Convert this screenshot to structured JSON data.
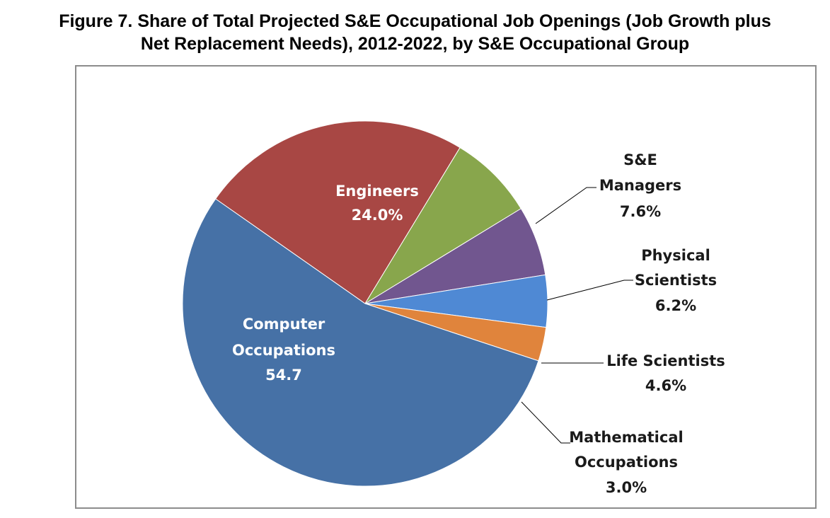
{
  "chart_data": {
    "type": "pie",
    "title_line1": "Figure 7. Share of Total Projected S&E Occupational Job Openings (Job Growth plus",
    "title_line2": "Net Replacement Needs), 2012-2022, by S&E Occupational Group",
    "slices": [
      {
        "label_lines": [
          "Engineers"
        ],
        "value": 24.0,
        "value_text": "24.0%",
        "color": "#a84744",
        "label_color": "#ffffff"
      },
      {
        "label_lines": [
          "S&E",
          "Managers"
        ],
        "value": 7.6,
        "value_text": "7.6%",
        "color": "#88a64c",
        "label_color": "#1a1a1a"
      },
      {
        "label_lines": [
          "Physical",
          "Scientists"
        ],
        "value": 6.2,
        "value_text": "6.2%",
        "color": "#71568f",
        "label_color": "#1a1a1a"
      },
      {
        "label_lines": [
          "Life Scientists"
        ],
        "value": 4.6,
        "value_text": "4.6%",
        "color": "#4f89d4",
        "label_color": "#1a1a1a"
      },
      {
        "label_lines": [
          "Mathematical",
          "Occupations"
        ],
        "value": 3.0,
        "value_text": "3.0%",
        "color": "#e0843c",
        "label_color": "#1a1a1a"
      },
      {
        "label_lines": [
          "Computer",
          "Occupations"
        ],
        "value": 54.7,
        "value_text": "54.7",
        "color": "#4671a6",
        "label_color": "#ffffff"
      }
    ]
  }
}
